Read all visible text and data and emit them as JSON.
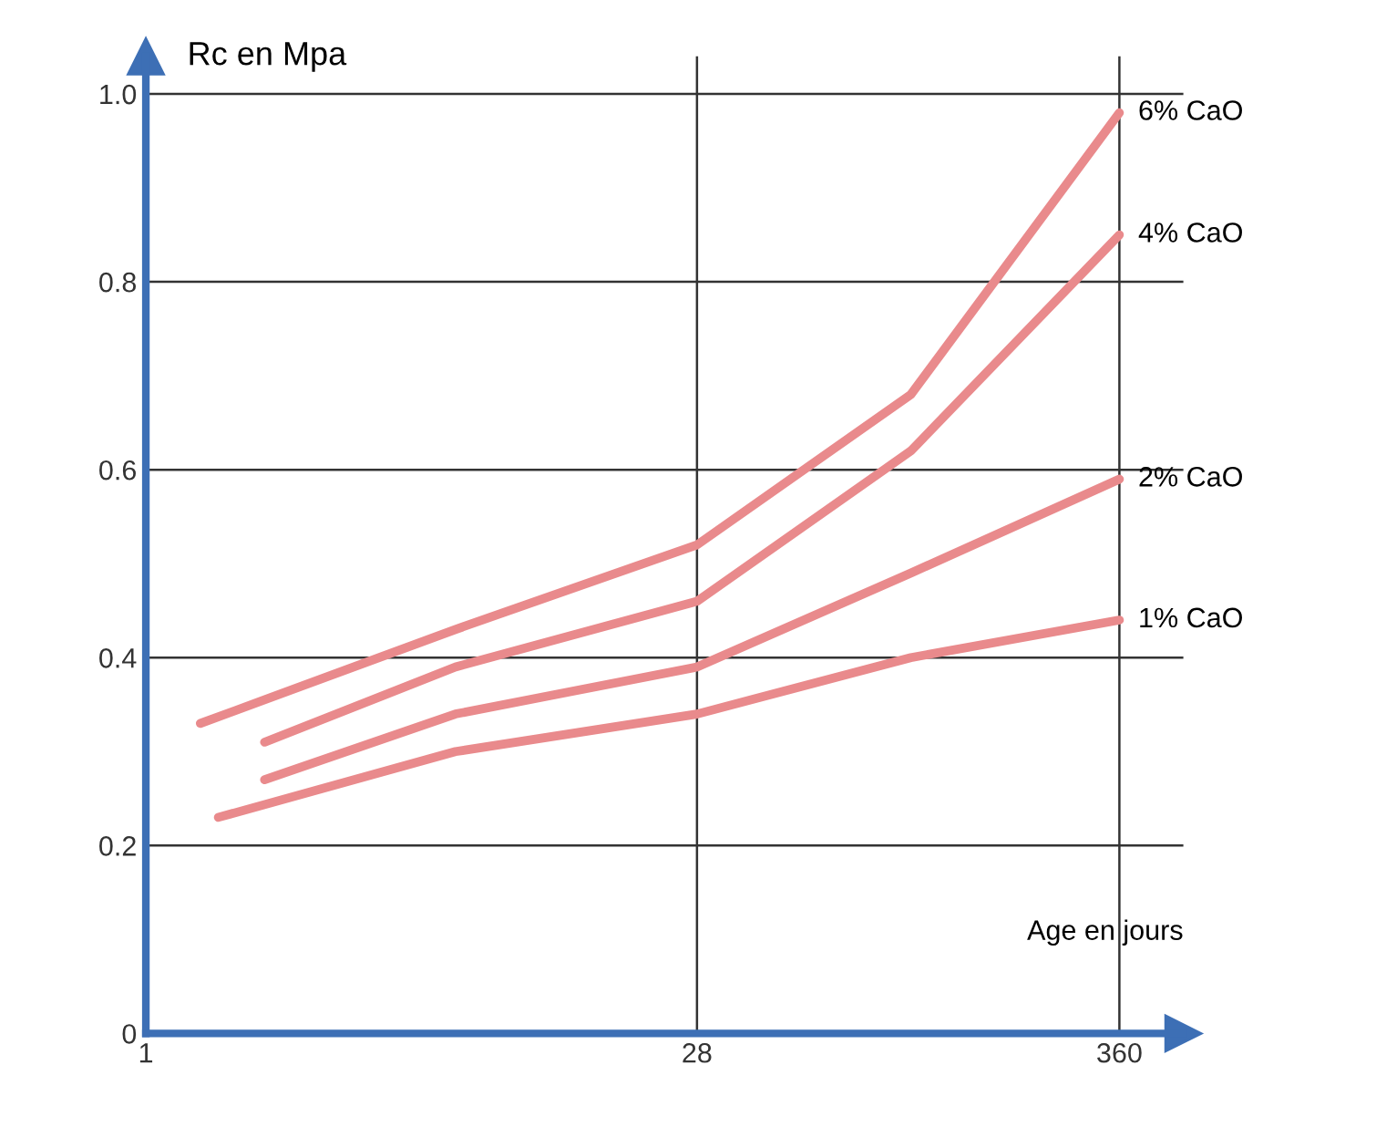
{
  "chart_data": {
    "type": "line",
    "ylabel": "Rc en Mpa",
    "xlabel": "Age en jours",
    "log": "x",
    "xlim": [
      1,
      530
    ],
    "xticks": [
      1,
      28,
      360
    ],
    "ylim": [
      0,
      1.04
    ],
    "yticks": [
      0,
      0.2,
      0.4,
      0.6,
      0.8,
      {
        "value": 1,
        "label": "1.0"
      }
    ],
    "grid": true,
    "marker": "none",
    "line_style": "solid",
    "series": [
      {
        "name": "6% CaO",
        "color": "#e98a8c",
        "x": [
          1.39,
          6.5,
          28,
          102,
          360
        ],
        "values": [
          0.33,
          0.43,
          0.52,
          0.68,
          0.98
        ]
      },
      {
        "name": "4% CaO",
        "color": "#e98a8c",
        "x": [
          2.05,
          6.5,
          28,
          102,
          360
        ],
        "values": [
          0.31,
          0.39,
          0.46,
          0.62,
          0.85
        ]
      },
      {
        "name": "2% CaO",
        "color": "#e98a8c",
        "x": [
          2.05,
          6.5,
          28,
          102,
          360
        ],
        "values": [
          0.27,
          0.34,
          0.39,
          0.49,
          0.59
        ]
      },
      {
        "name": "1% CaO",
        "color": "#e98a8c",
        "x": [
          1.55,
          6.5,
          28,
          102,
          360
        ],
        "values": [
          0.23,
          0.3,
          0.34,
          0.4,
          0.44
        ]
      }
    ]
  }
}
